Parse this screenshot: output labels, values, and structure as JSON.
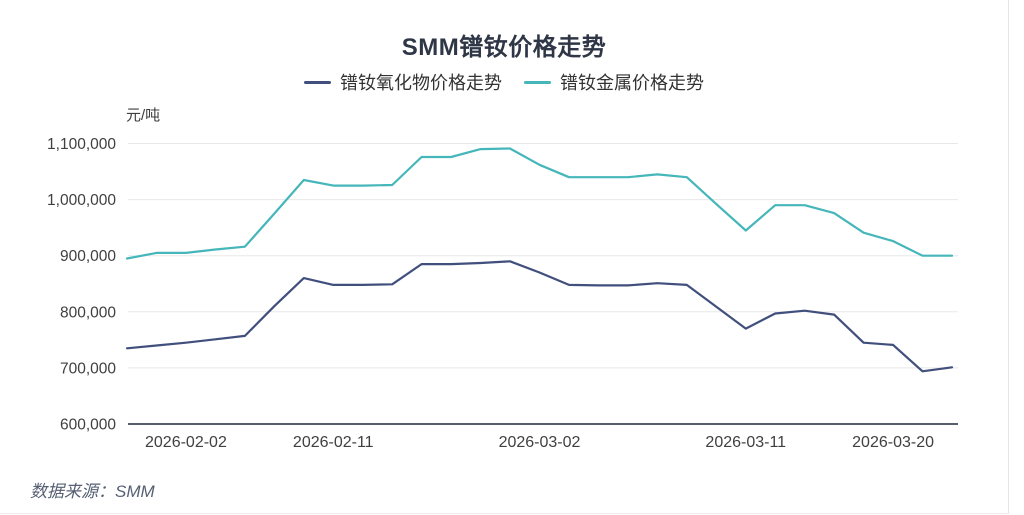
{
  "title": "SMM镨钕价格走势",
  "source_note": "数据来源：SMM",
  "colors": {
    "title_text": "#2f3747",
    "oxide_line": "#414f7d",
    "metal_line": "#45b6ba",
    "grid_line": "#e8e8e8",
    "axis_line": "#565d6d",
    "tick_text": "#404040",
    "source_text": "#566073",
    "background": "#ffffff"
  },
  "chart_data": {
    "type": "line",
    "title": "SMM镨钕价格走势",
    "ylabel_unit": "元/吨",
    "grid": true,
    "legend_position": "top",
    "y_axis": {
      "min": 600000,
      "max": 1100000,
      "step": 100000,
      "tick_labels": [
        "600,000",
        "700,000",
        "800,000",
        "900,000",
        "1,000,000",
        "1,100,000"
      ]
    },
    "x_axis": {
      "tick_labels": [
        "2026-02-02",
        "2026-02-11",
        "2026-03-02",
        "2026-03-11",
        "2026-03-20"
      ],
      "tick_point_indices": [
        2,
        7,
        14,
        21,
        26
      ]
    },
    "series": [
      {
        "name": "镨钕氧化物价格走势",
        "color": "#414f7d",
        "values": [
          735000,
          740000,
          745000,
          751000,
          757000,
          810000,
          860000,
          848000,
          848000,
          849000,
          885000,
          885000,
          887000,
          890000,
          870000,
          848000,
          847000,
          847000,
          851000,
          848000,
          809000,
          770000,
          797000,
          802000,
          795000,
          745000,
          741000,
          694000,
          701000
        ]
      },
      {
        "name": "镨钕金属价格走势",
        "color": "#45b6ba",
        "values": [
          895000,
          905000,
          905000,
          911000,
          916000,
          975000,
          1035000,
          1025000,
          1025000,
          1026000,
          1076000,
          1076000,
          1090000,
          1091000,
          1062000,
          1040000,
          1040000,
          1040000,
          1045000,
          1040000,
          992000,
          945000,
          990000,
          990000,
          976000,
          941000,
          926000,
          900000,
          900000
        ]
      }
    ]
  }
}
